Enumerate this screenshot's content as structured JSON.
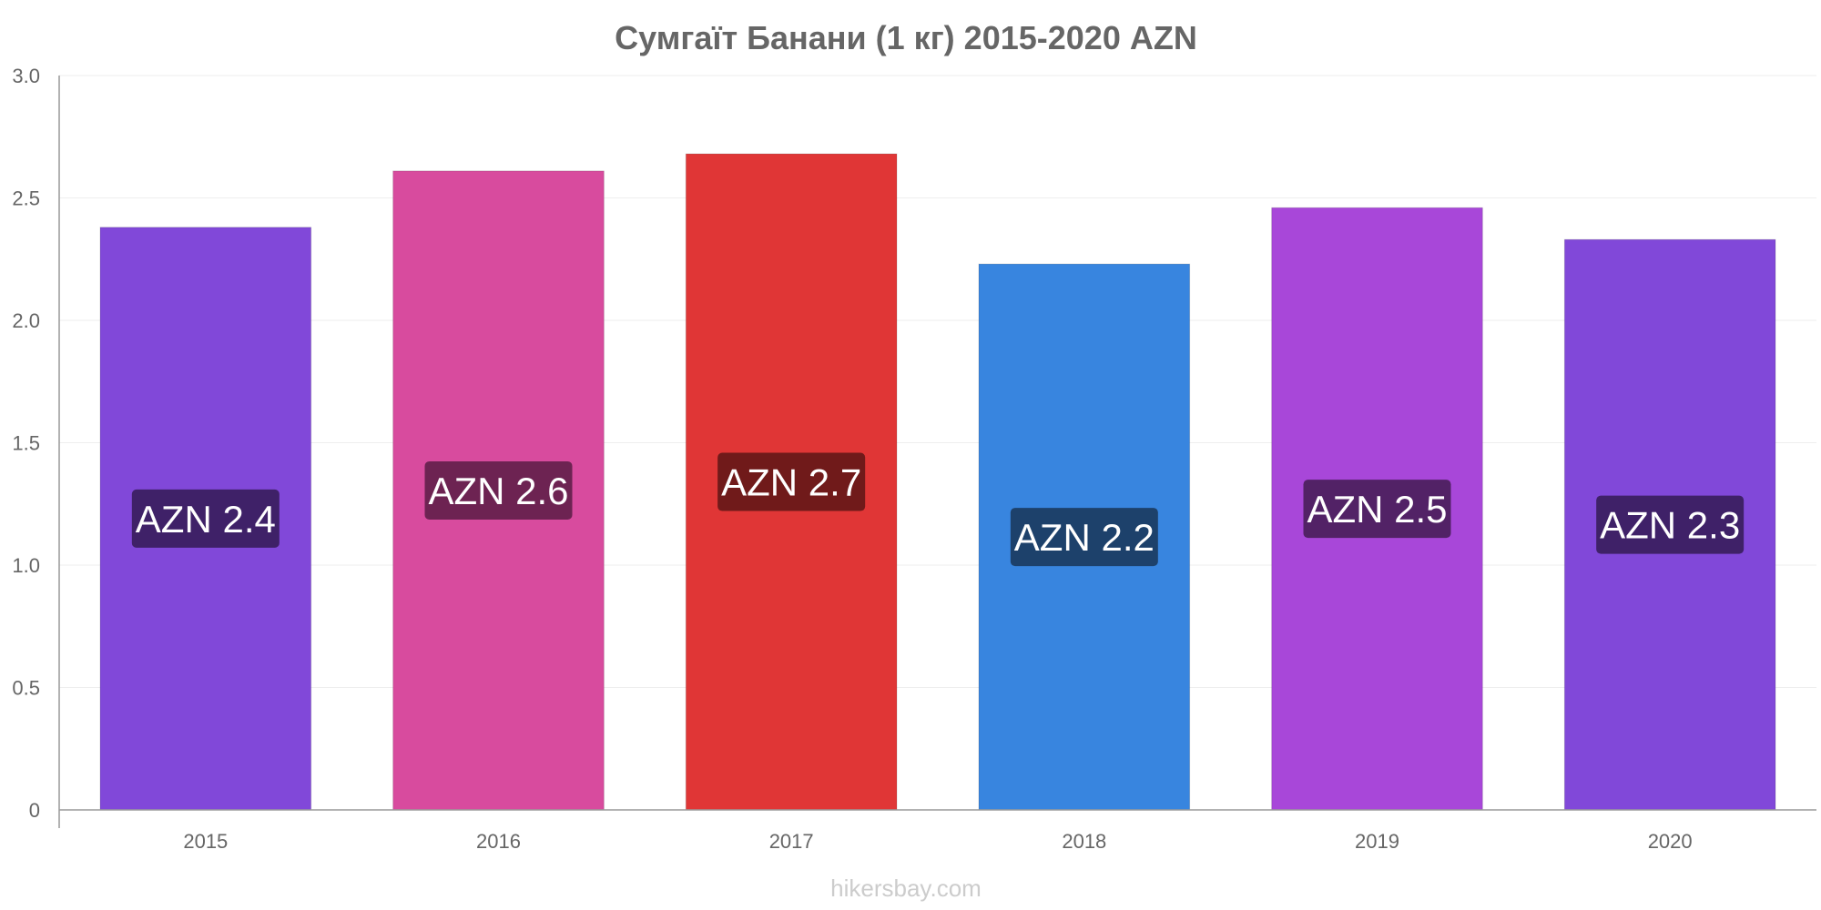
{
  "chart_data": {
    "type": "bar",
    "title": "Сумгаїт Банани (1 кг) 2015-2020 AZN",
    "xlabel": "",
    "ylabel": "",
    "categories": [
      "2015",
      "2016",
      "2017",
      "2018",
      "2019",
      "2020"
    ],
    "values": [
      2.38,
      2.61,
      2.68,
      2.23,
      2.46,
      2.33
    ],
    "data_labels": [
      "AZN 2.4",
      "AZN 2.6",
      "AZN 2.7",
      "AZN 2.2",
      "AZN 2.5",
      "AZN 2.3"
    ],
    "ylim": [
      0,
      3.0
    ],
    "y_ticks": [
      0,
      0.5,
      1.0,
      1.5,
      2.0,
      2.5,
      3.0
    ],
    "y_tick_labels": [
      "0",
      "0.5",
      "1.0",
      "1.5",
      "2.0",
      "2.5",
      "3.0"
    ],
    "grid": true,
    "legend": "none",
    "colors": {
      "bars": [
        "#8148d9",
        "#d84b9e",
        "#e03636",
        "#3885df",
        "#a847d9",
        "#8148d9"
      ],
      "label_boxes": [
        "#3f2168",
        "#6d2352",
        "#701a1a",
        "#1d416b",
        "#522266",
        "#3f2168"
      ],
      "axis": "#999999",
      "grid": "#eeeeee",
      "text": "#666666",
      "watermark": "#cccccc"
    }
  },
  "watermark": "hikersbay.com"
}
